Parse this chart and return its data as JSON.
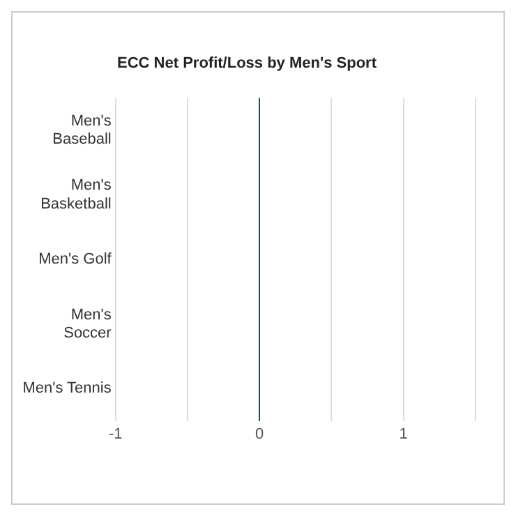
{
  "chart_data": {
    "type": "bar",
    "orientation": "horizontal",
    "title": "ECC Net Profit/Loss by Men's Sport",
    "categories": [
      "Men's Baseball",
      "Men's Basketball",
      "Men's Golf",
      "Men's Soccer",
      "Men's Tennis"
    ],
    "values": [
      0,
      0,
      0,
      0,
      0
    ],
    "color": "#1f4e5a",
    "xlim": [
      -1,
      1.5
    ],
    "xticks": [
      -1,
      {
        "value": -0.5,
        "label": null
      },
      0,
      {
        "value": 0.5,
        "label": null
      },
      1,
      {
        "value": 1.5,
        "label": null
      }
    ],
    "grid": "x",
    "legend": false
  }
}
